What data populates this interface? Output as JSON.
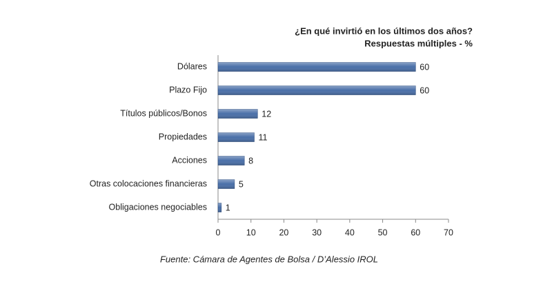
{
  "chart_data": {
    "type": "hbar",
    "title": "¿En qué invirtió en los últimos dos años?",
    "subtitle": "Respuestas múltiples - %",
    "categories": [
      "Dólares",
      "Plazo Fijo",
      "Títulos públicos/Bonos",
      "Propiedades",
      "Acciones",
      "Otras colocaciones financieras",
      "Obligaciones negociables"
    ],
    "values": [
      60,
      60,
      12,
      11,
      8,
      5,
      1
    ],
    "color": "#4a6fa8",
    "xlim": [
      0,
      70
    ],
    "xticks": [
      0,
      10,
      20,
      30,
      40,
      50,
      60,
      70
    ],
    "grid": false,
    "source": "Fuente: Cámara de Agentes de Bolsa / D’Alessio IROL"
  }
}
